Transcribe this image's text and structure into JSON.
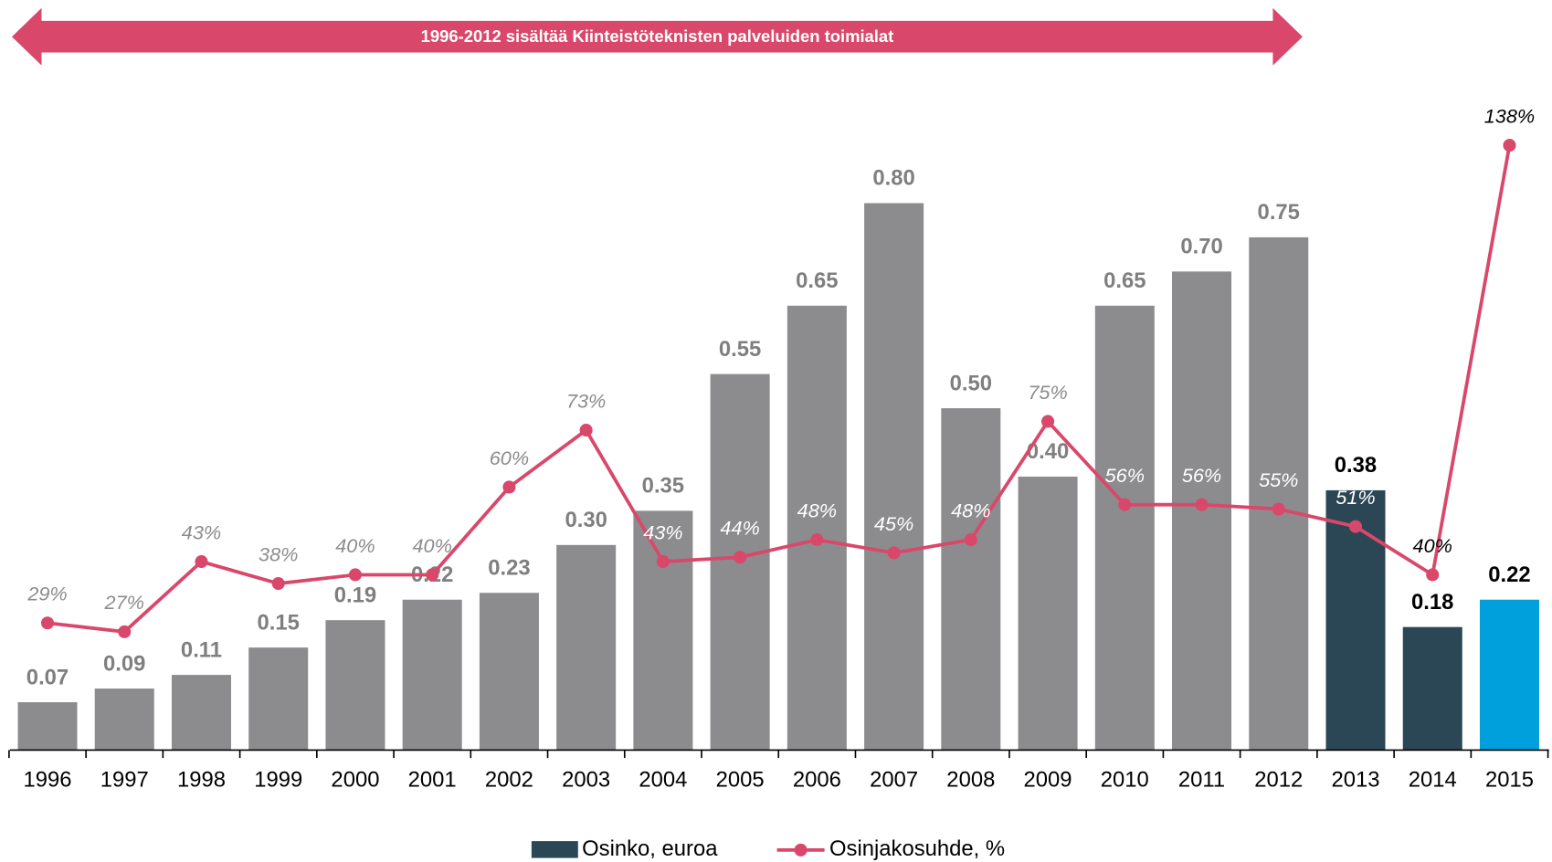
{
  "chart_data": {
    "type": "bar_line",
    "annotation": "1996-2012 sisältää Kiinteistöteknisten palveluiden toimialat",
    "categories": [
      "1996",
      "1997",
      "1998",
      "1999",
      "2000",
      "2001",
      "2002",
      "2003",
      "2004",
      "2005",
      "2006",
      "2007",
      "2008",
      "2009",
      "2010",
      "2011",
      "2012",
      "2013",
      "2014",
      "2015"
    ],
    "ylim": [
      0,
      1
    ],
    "y2lim": [
      0,
      156
    ],
    "legend": "bottom",
    "series": [
      {
        "name": "Osinko, euroa",
        "type": "bar",
        "color": "#2b4655",
        "colors": [
          "#8c8c8e",
          "#8c8c8e",
          "#8c8c8e",
          "#8c8c8e",
          "#8c8c8e",
          "#8c8c8e",
          "#8c8c8e",
          "#8c8c8e",
          "#8c8c8e",
          "#8c8c8e",
          "#8c8c8e",
          "#8c8c8e",
          "#8c8c8e",
          "#8c8c8e",
          "#8c8c8e",
          "#8c8c8e",
          "#8c8c8e",
          "#2b4655",
          "#2b4655",
          "#00a0dc"
        ],
        "values": [
          0.07,
          0.09,
          0.11,
          0.15,
          0.19,
          0.22,
          0.23,
          0.3,
          0.35,
          0.55,
          0.65,
          0.8,
          0.5,
          0.4,
          0.65,
          0.7,
          0.75,
          0.38,
          0.18,
          0.22
        ],
        "value_labels": [
          "0.07",
          "0.09",
          "0.11",
          "0.15",
          "0.19",
          "0.22",
          "0.23",
          "0.30",
          "0.35",
          "0.55",
          "0.65",
          "0.80",
          "0.50",
          "0.40",
          "0.65",
          "0.70",
          "0.75",
          "0.38",
          "0.18",
          "0.22"
        ]
      },
      {
        "name": "Osinjakosuhde, %",
        "type": "line",
        "axis": "y2",
        "color": "#d9486a",
        "values": [
          29,
          27,
          43,
          38,
          40,
          40,
          60,
          73,
          43,
          44,
          48,
          45,
          48,
          75,
          56,
          56,
          55,
          51,
          40,
          138
        ],
        "value_labels": [
          "29%",
          "27%",
          "43%",
          "38%",
          "40%",
          "40%",
          "60%",
          "73%",
          "43%",
          "44%",
          "48%",
          "45%",
          "48%",
          "75%",
          "56%",
          "56%",
          "55%",
          "51%",
          "40%",
          "138%"
        ]
      }
    ]
  }
}
